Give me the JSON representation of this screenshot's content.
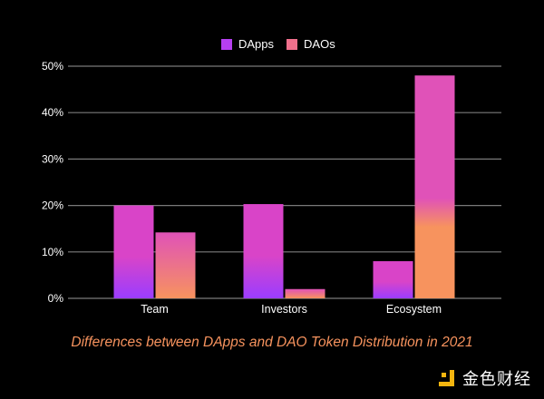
{
  "chart_data": {
    "type": "bar",
    "title": "Differences between DApps and DAO Token Distribution in 2021",
    "xlabel": "",
    "ylabel": "",
    "categories": [
      "Team",
      "Investors",
      "Ecosystem"
    ],
    "series": [
      {
        "name": "DApps",
        "values": [
          20,
          20.3,
          8
        ],
        "color_top": "#d944c8",
        "color_bottom": "#9b3dff"
      },
      {
        "name": "DAOs",
        "values": [
          14.2,
          2,
          48
        ],
        "color_top": "#e052b8",
        "color_bottom": "#f7935e"
      }
    ],
    "ylim": [
      0,
      50
    ],
    "yticks": [
      0,
      10,
      20,
      30,
      40,
      50
    ],
    "ytick_labels": [
      "0%",
      "10%",
      "20%",
      "30%",
      "40%",
      "50%"
    ],
    "grid": true,
    "legend_position": "top-center"
  },
  "legend": [
    {
      "label": "DApps",
      "color": "#b63ff0"
    },
    {
      "label": "DAOs",
      "color": "#f0708c"
    }
  ],
  "caption": "Differences between DApps and DAO Token Distribution in 2021",
  "logo": {
    "text": "金色财经",
    "color": "#f5b50f"
  }
}
